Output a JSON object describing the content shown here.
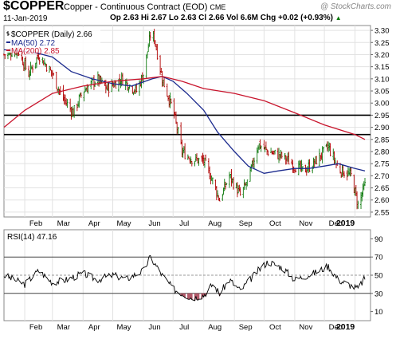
{
  "header": {
    "symbol": "$COPPER",
    "name": "Copper - Continuous Contract (EOD)",
    "exchange": "CME",
    "brand": "@ StockCharts.com",
    "date": "11-Jan-2019",
    "quote": "Op 2.63  Hi 2.67  Lo 2.63  Cl 2.66  Vol 6.6M  Chg +0.02 (+0.93%)",
    "quote_arrow": "▲"
  },
  "legend": {
    "price": "$COPPER (Daily) 2.66",
    "ma50": "MA(50) 2.72",
    "ma200": "MA(200) 2.85"
  },
  "rsi_legend": "RSI(14) 47.16",
  "colors": {
    "ma50": "#1c2b8e",
    "ma200": "#c8142c",
    "up": "#0d7a0d",
    "down": "#b00000",
    "oversold": "#b35a6a"
  },
  "chart_data": [
    {
      "type": "candlestick",
      "x_labels": [
        "Feb",
        "Mar",
        "Apr",
        "May",
        "Jun",
        "Jul",
        "Aug",
        "Sep",
        "Oct",
        "Nov",
        "Dec",
        "2019"
      ],
      "y_ticks": [
        2.55,
        2.6,
        2.65,
        2.7,
        2.75,
        2.8,
        2.85,
        2.9,
        2.95,
        3.0,
        3.05,
        3.1,
        3.15,
        3.2,
        3.25,
        3.3
      ],
      "ylim": [
        2.53,
        3.32
      ],
      "horizontal_lines": [
        2.95,
        2.87
      ],
      "series": [
        {
          "name": "MA(50)",
          "points": [
            [
              "2018-01-11",
              3.22
            ],
            [
              "2018-02-10",
              3.21
            ],
            [
              "2018-03-01",
              3.19
            ],
            [
              "2018-03-20",
              3.13
            ],
            [
              "2018-04-10",
              3.1
            ],
            [
              "2018-05-01",
              3.08
            ],
            [
              "2018-05-20",
              3.07
            ],
            [
              "2018-06-10",
              3.1
            ],
            [
              "2018-06-20",
              3.11
            ],
            [
              "2018-07-01",
              3.09
            ],
            [
              "2018-07-15",
              3.04
            ],
            [
              "2018-08-01",
              2.97
            ],
            [
              "2018-08-15",
              2.88
            ],
            [
              "2018-09-01",
              2.8
            ],
            [
              "2018-09-15",
              2.74
            ],
            [
              "2018-10-01",
              2.71
            ],
            [
              "2018-10-15",
              2.72
            ],
            [
              "2018-11-01",
              2.73
            ],
            [
              "2018-11-15",
              2.73
            ],
            [
              "2018-12-01",
              2.74
            ],
            [
              "2018-12-15",
              2.75
            ],
            [
              "2019-01-01",
              2.73
            ],
            [
              "2019-01-11",
              2.72
            ]
          ]
        },
        {
          "name": "MA(200)",
          "points": [
            [
              "2018-01-11",
              2.9
            ],
            [
              "2018-02-01",
              2.97
            ],
            [
              "2018-03-01",
              3.04
            ],
            [
              "2018-04-01",
              3.07
            ],
            [
              "2018-05-01",
              3.09
            ],
            [
              "2018-06-01",
              3.1
            ],
            [
              "2018-06-20",
              3.11
            ],
            [
              "2018-07-10",
              3.09
            ],
            [
              "2018-08-01",
              3.06
            ],
            [
              "2018-09-01",
              3.04
            ],
            [
              "2018-10-01",
              3.01
            ],
            [
              "2018-11-01",
              2.96
            ],
            [
              "2018-12-01",
              2.91
            ],
            [
              "2019-01-01",
              2.87
            ],
            [
              "2019-01-11",
              2.85
            ]
          ]
        }
      ],
      "price_path": [
        [
          "2018-01-11",
          3.2
        ],
        [
          "2018-01-25",
          3.22
        ],
        [
          "2018-02-05",
          3.12
        ],
        [
          "2018-02-15",
          3.2
        ],
        [
          "2018-03-01",
          3.12
        ],
        [
          "2018-03-10",
          3.03
        ],
        [
          "2018-03-22",
          2.96
        ],
        [
          "2018-04-01",
          3.05
        ],
        [
          "2018-04-15",
          3.1
        ],
        [
          "2018-04-25",
          3.06
        ],
        [
          "2018-05-10",
          3.1
        ],
        [
          "2018-05-25",
          3.05
        ],
        [
          "2018-06-01",
          3.12
        ],
        [
          "2018-06-08",
          3.28
        ],
        [
          "2018-06-12",
          3.27
        ],
        [
          "2018-06-20",
          3.1
        ],
        [
          "2018-07-01",
          2.97
        ],
        [
          "2018-07-10",
          2.8
        ],
        [
          "2018-07-20",
          2.77
        ],
        [
          "2018-08-01",
          2.76
        ],
        [
          "2018-08-10",
          2.68
        ],
        [
          "2018-08-17",
          2.6
        ],
        [
          "2018-08-27",
          2.7
        ],
        [
          "2018-09-07",
          2.62
        ],
        [
          "2018-09-15",
          2.68
        ],
        [
          "2018-09-25",
          2.83
        ],
        [
          "2018-10-05",
          2.8
        ],
        [
          "2018-10-20",
          2.78
        ],
        [
          "2018-11-01",
          2.74
        ],
        [
          "2018-11-10",
          2.72
        ],
        [
          "2018-11-20",
          2.75
        ],
        [
          "2018-12-05",
          2.82
        ],
        [
          "2018-12-15",
          2.73
        ],
        [
          "2018-12-28",
          2.7
        ],
        [
          "2019-01-04",
          2.58
        ],
        [
          "2019-01-11",
          2.66
        ]
      ]
    },
    {
      "type": "line",
      "y_ticks": [
        10,
        30,
        50,
        70,
        90
      ],
      "ylim": [
        0,
        100
      ],
      "reference_lines": [
        70,
        50,
        30
      ],
      "series": [
        {
          "name": "RSI(14)",
          "points": [
            [
              "2018-01-11",
              50
            ],
            [
              "2018-02-01",
              40
            ],
            [
              "2018-02-15",
              55
            ],
            [
              "2018-03-01",
              42
            ],
            [
              "2018-03-15",
              45
            ],
            [
              "2018-04-01",
              52
            ],
            [
              "2018-04-15",
              45
            ],
            [
              "2018-05-01",
              50
            ],
            [
              "2018-05-15",
              46
            ],
            [
              "2018-06-01",
              55
            ],
            [
              "2018-06-08",
              70
            ],
            [
              "2018-06-20",
              50
            ],
            [
              "2018-07-01",
              35
            ],
            [
              "2018-07-10",
              30
            ],
            [
              "2018-07-20",
              25
            ],
            [
              "2018-08-01",
              28
            ],
            [
              "2018-08-10",
              40
            ],
            [
              "2018-08-17",
              30
            ],
            [
              "2018-08-27",
              45
            ],
            [
              "2018-09-07",
              33
            ],
            [
              "2018-09-25",
              55
            ],
            [
              "2018-10-05",
              65
            ],
            [
              "2018-10-20",
              58
            ],
            [
              "2018-11-01",
              45
            ],
            [
              "2018-11-20",
              52
            ],
            [
              "2018-12-05",
              60
            ],
            [
              "2018-12-15",
              45
            ],
            [
              "2019-01-04",
              35
            ],
            [
              "2019-01-11",
              47
            ]
          ]
        }
      ]
    }
  ]
}
